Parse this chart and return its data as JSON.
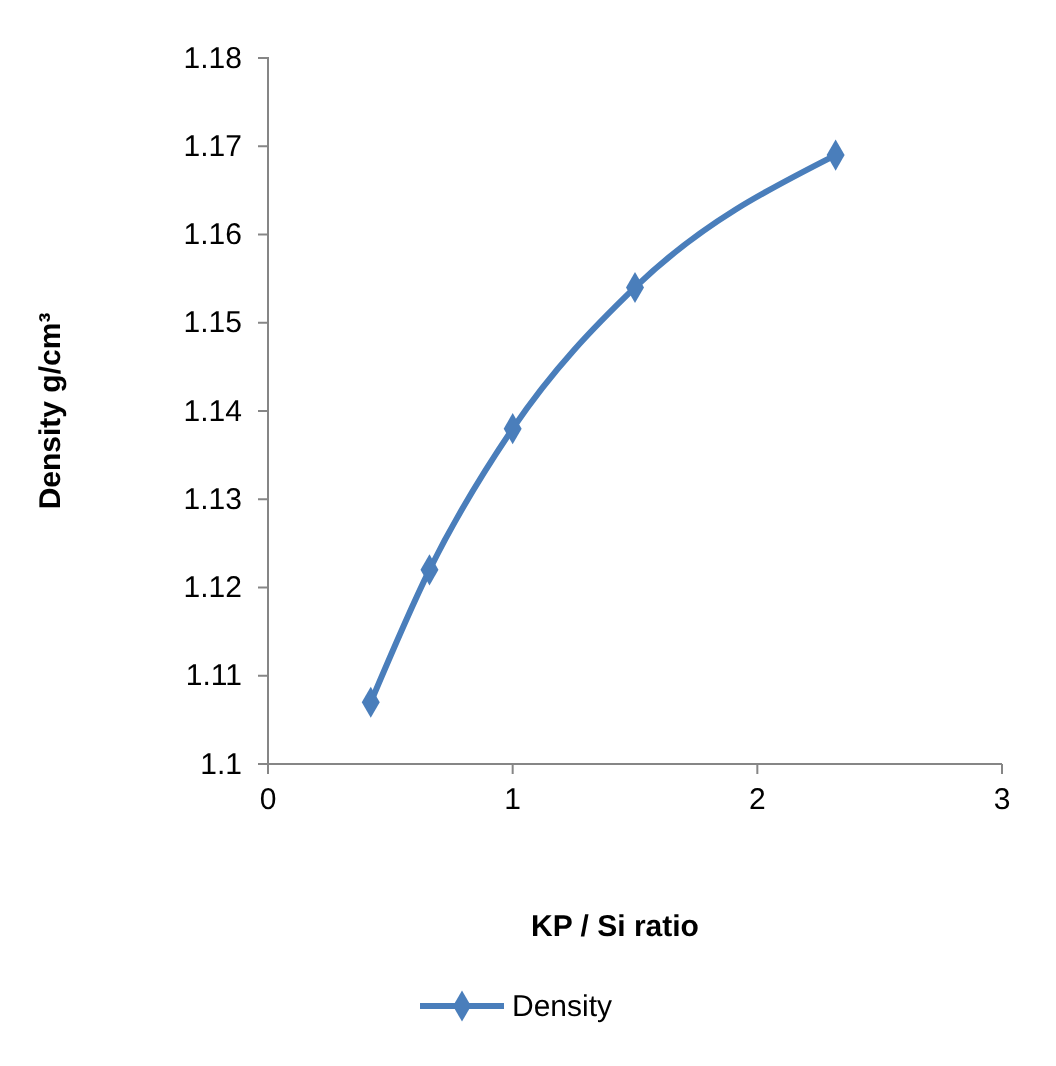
{
  "chart_data": {
    "type": "line",
    "xlabel": "KP / Si ratio",
    "ylabel": "Density g/cm³",
    "x": [
      0.42,
      0.66,
      1.0,
      1.5,
      2.32
    ],
    "series": [
      {
        "name": "Density",
        "color": "#4a7ebb",
        "values": [
          1.107,
          1.122,
          1.138,
          1.154,
          1.169
        ]
      }
    ],
    "xlim": [
      0,
      3
    ],
    "xticks": [
      0,
      1,
      2,
      3
    ],
    "ylim": [
      1.1,
      1.18
    ],
    "yticks": [
      {
        "value": 1.1,
        "label": "1.1"
      },
      1.11,
      1.12,
      1.13,
      1.14,
      1.15,
      1.16,
      1.17,
      1.18
    ],
    "grid": false,
    "legend": "bottom",
    "marker": "diamond",
    "line_style": "solid"
  }
}
